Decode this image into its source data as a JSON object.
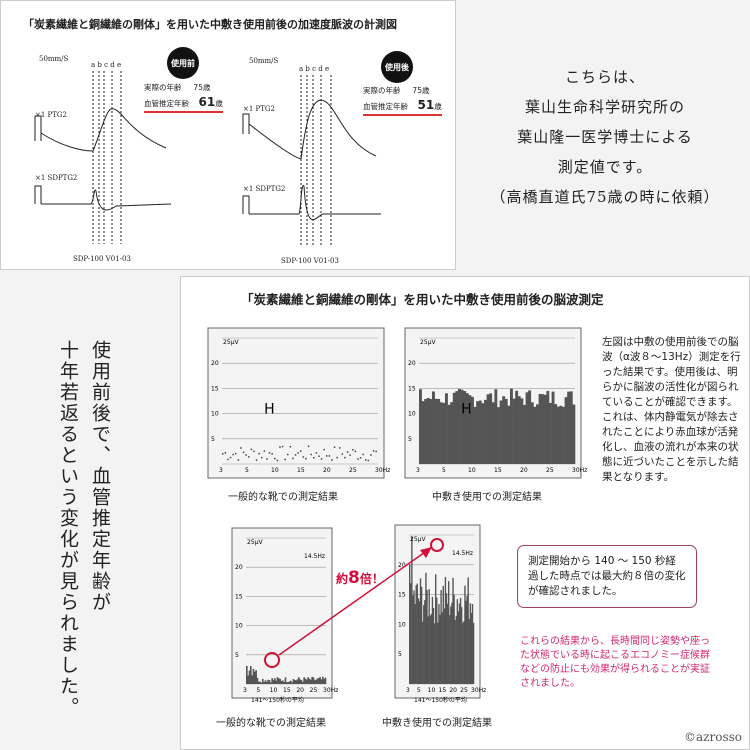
{
  "pulse": {
    "title": "「炭素繊維と銅繊維の剛体」を用いた中敷き使用前後の加速度脈波の計測図",
    "before": {
      "badge": "使用前",
      "actual_label": "実際の年齢",
      "actual_value": "75歳",
      "est_label": "血管推定年齢",
      "est_value": "61",
      "est_unit": "歳",
      "speed": "50mm/S",
      "letters": "a b c d e",
      "ptg": "×1  PTG2",
      "sdptg": "×1  SDPTG2",
      "footer": "SDP-100    V01-03"
    },
    "after": {
      "badge": "使用後",
      "actual_label": "実際の年齢",
      "actual_value": "75歳",
      "est_label": "血管推定年齢",
      "est_value": "51",
      "est_unit": "歳",
      "speed": "50mm/S",
      "letters": "a b c d e",
      "ptg": "×1  PTG2",
      "sdptg": "×1  SDPTG2",
      "footer": "SDP-100    V01-03"
    }
  },
  "intro": [
    "こちらは、",
    "葉山生命科学研究所の",
    "葉山隆一医学博士による",
    "測定値です。",
    "（高橋直道氏75歳の時に依頼）"
  ],
  "vertical": [
    "使用前後で、血管推定年齢が",
    "十年若返るという変化が見られました。"
  ],
  "eeg": {
    "title": "「炭素繊維と銅繊維の剛体」を用いた中敷き使用前後の脳波測定",
    "captions": [
      "一般的な靴での測定結果",
      "中敷き使用での測定結果",
      "一般的な靴での測定結果",
      "中敷き使用での測定結果"
    ],
    "yunit": "25μV",
    "yticks": [
      "20",
      "15",
      "10",
      "5"
    ],
    "xticks": [
      "3",
      "5",
      "10",
      "15",
      "20",
      "25",
      "30Hz"
    ],
    "marker": "H",
    "hz_label": "14.5Hz",
    "time_label": "141～150秒の平均",
    "times_pre": "約",
    "times_num": "8",
    "times_post": "倍！",
    "description": "左図は中敷の使用前後での脳波（α波８～13Hz）測定を行った結果です。使用後は、明らかに脳波の活性化が図られていることが確認できます。これは、体内静電気が除去されたことにより赤血球が活発化し、血液の流れが本来の状態に近づいたことを示した結果となります。",
    "box": "測定開始から 140 ～ 150 秒経過した時点では最大約８倍の変化が確認されました。",
    "conclusion": "これらの結果から、長時間同じ姿勢や座った状態でいる時に起こるエコノミー症候群などの防止にも効果が得られることが実証されました。"
  },
  "copyright": "©azrosso",
  "colors": {
    "accent_red": "#d0103a",
    "pink_text": "#d02870",
    "box_border": "#a04060"
  }
}
